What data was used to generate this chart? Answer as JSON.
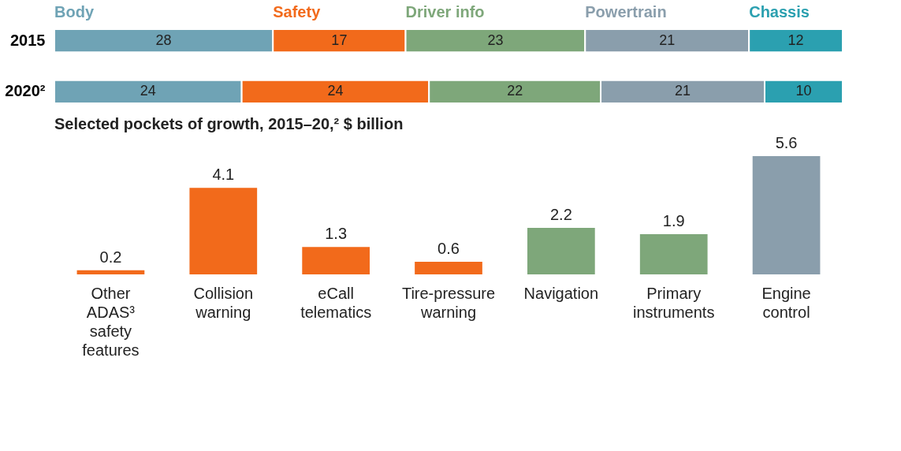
{
  "chart_data": [
    {
      "type": "bar",
      "orientation": "horizontal",
      "stacked": true,
      "data_labels": true,
      "tick_labels": "y",
      "categories": [
        "2015",
        "2020²"
      ],
      "series": [
        {
          "name": "Body",
          "color": "#6fa3b5",
          "values": [
            28,
            24
          ]
        },
        {
          "name": "Safety",
          "color": "#f26a1b",
          "values": [
            17,
            24
          ]
        },
        {
          "name": "Driver info",
          "color": "#7ea77a",
          "values": [
            23,
            22
          ]
        },
        {
          "name": "Powertrain",
          "color": "#8a9eac",
          "values": [
            21,
            21
          ]
        },
        {
          "name": "Chassis",
          "color": "#2ba0b0",
          "values": [
            12,
            10
          ]
        }
      ]
    },
    {
      "type": "bar",
      "title": "Selected pockets of growth, 2015–20,² $ billion",
      "data_labels": true,
      "tick_labels": "x",
      "categories": [
        "Other ADAS³ safety features",
        "Collision warning",
        "eCall telematics",
        "Tire-pressure warning",
        "Navigation",
        "Primary instruments",
        "Engine control"
      ],
      "values": [
        0.2,
        4.1,
        1.3,
        0.6,
        2.2,
        1.9,
        5.6
      ],
      "colors": [
        "#f26a1b",
        "#f26a1b",
        "#f26a1b",
        "#f26a1b",
        "#7ea77a",
        "#7ea77a",
        "#8a9eac"
      ]
    }
  ]
}
